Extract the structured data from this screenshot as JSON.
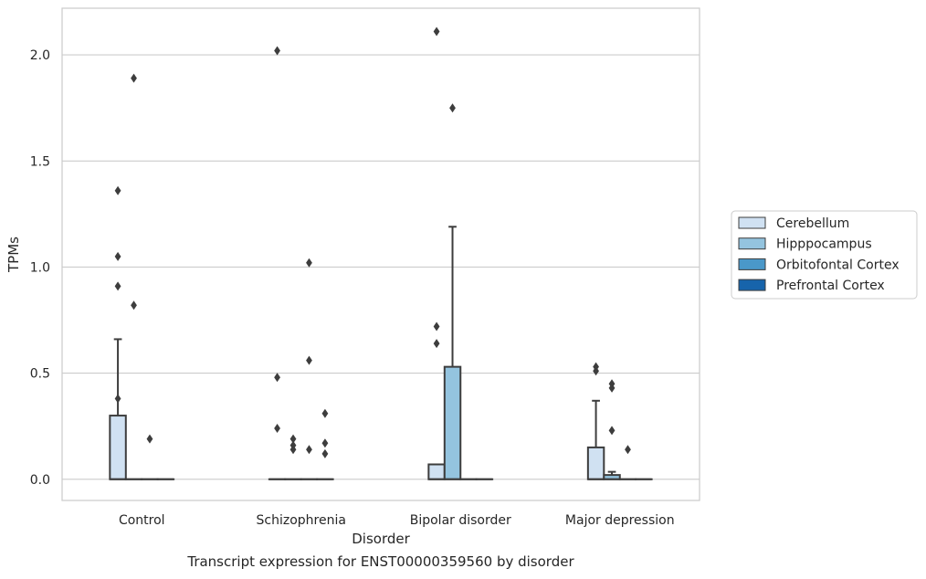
{
  "caption": "Transcript expression for ENST00000359560 by disorder",
  "chart_data": {
    "type": "box",
    "xlabel": "Disorder",
    "ylabel": "TPMs",
    "ylim": [
      -0.1,
      2.22
    ],
    "yticks": [
      0.0,
      0.5,
      1.0,
      1.5,
      2.0
    ],
    "ytick_labels": [
      "0.0",
      "0.5",
      "1.0",
      "1.5",
      "2.0"
    ],
    "grid": "horizontal",
    "legend_position": "right",
    "categories": [
      "Control",
      "Schizophrenia",
      "Bipolar disorder",
      "Major depression"
    ],
    "series": [
      {
        "name": "Cerebellum",
        "color": "#d0e1f2",
        "boxes": [
          {
            "q1": 0.0,
            "median": 0.0,
            "q3": 0.3,
            "whisker_low": 0.0,
            "whisker_high": 0.66,
            "outliers": [
              1.36,
              1.05,
              0.91,
              0.38
            ]
          },
          {
            "q1": 0.0,
            "median": 0.0,
            "q3": 0.0,
            "whisker_low": 0.0,
            "whisker_high": 0.0,
            "outliers": [
              2.02,
              0.48,
              0.24
            ]
          },
          {
            "q1": 0.0,
            "median": 0.0,
            "q3": 0.07,
            "whisker_low": 0.0,
            "whisker_high": 0.07,
            "outliers": [
              2.11,
              0.72,
              0.64
            ]
          },
          {
            "q1": 0.0,
            "median": 0.0,
            "q3": 0.15,
            "whisker_low": 0.0,
            "whisker_high": 0.37,
            "outliers": [
              0.53,
              0.51
            ]
          }
        ]
      },
      {
        "name": "Hipppocampus",
        "color": "#94c4df",
        "boxes": [
          {
            "q1": 0.0,
            "median": 0.0,
            "q3": 0.0,
            "whisker_low": 0.0,
            "whisker_high": 0.0,
            "outliers": [
              1.89,
              0.82
            ]
          },
          {
            "q1": 0.0,
            "median": 0.0,
            "q3": 0.0,
            "whisker_low": 0.0,
            "whisker_high": 0.0,
            "outliers": [
              0.19,
              0.16,
              0.14
            ]
          },
          {
            "q1": 0.0,
            "median": 0.0,
            "q3": 0.53,
            "whisker_low": 0.0,
            "whisker_high": 1.19,
            "outliers": [
              1.75
            ]
          },
          {
            "q1": 0.0,
            "median": 0.0,
            "q3": 0.02,
            "whisker_low": 0.0,
            "whisker_high": 0.035,
            "outliers": [
              0.45,
              0.43,
              0.23
            ]
          }
        ]
      },
      {
        "name": "Orbitofontal Cortex",
        "color": "#4a98c9",
        "boxes": [
          {
            "q1": 0.0,
            "median": 0.0,
            "q3": 0.0,
            "whisker_low": 0.0,
            "whisker_high": 0.0,
            "outliers": [
              0.19
            ]
          },
          {
            "q1": 0.0,
            "median": 0.0,
            "q3": 0.0,
            "whisker_low": 0.0,
            "whisker_high": 0.0,
            "outliers": [
              1.02,
              0.56,
              0.14
            ]
          },
          {
            "q1": 0.0,
            "median": 0.0,
            "q3": 0.0,
            "whisker_low": 0.0,
            "whisker_high": 0.0,
            "outliers": []
          },
          {
            "q1": 0.0,
            "median": 0.0,
            "q3": 0.0,
            "whisker_low": 0.0,
            "whisker_high": 0.0,
            "outliers": [
              0.14
            ]
          }
        ]
      },
      {
        "name": "Prefrontal Cortex",
        "color": "#1764ab",
        "boxes": [
          {
            "q1": 0.0,
            "median": 0.0,
            "q3": 0.0,
            "whisker_low": 0.0,
            "whisker_high": 0.0,
            "outliers": []
          },
          {
            "q1": 0.0,
            "median": 0.0,
            "q3": 0.0,
            "whisker_low": 0.0,
            "whisker_high": 0.0,
            "outliers": [
              0.31,
              0.17,
              0.12
            ]
          },
          {
            "q1": 0.0,
            "median": 0.0,
            "q3": 0.0,
            "whisker_low": 0.0,
            "whisker_high": 0.0,
            "outliers": []
          },
          {
            "q1": 0.0,
            "median": 0.0,
            "q3": 0.0,
            "whisker_low": 0.0,
            "whisker_high": 0.0,
            "outliers": []
          }
        ]
      }
    ]
  }
}
